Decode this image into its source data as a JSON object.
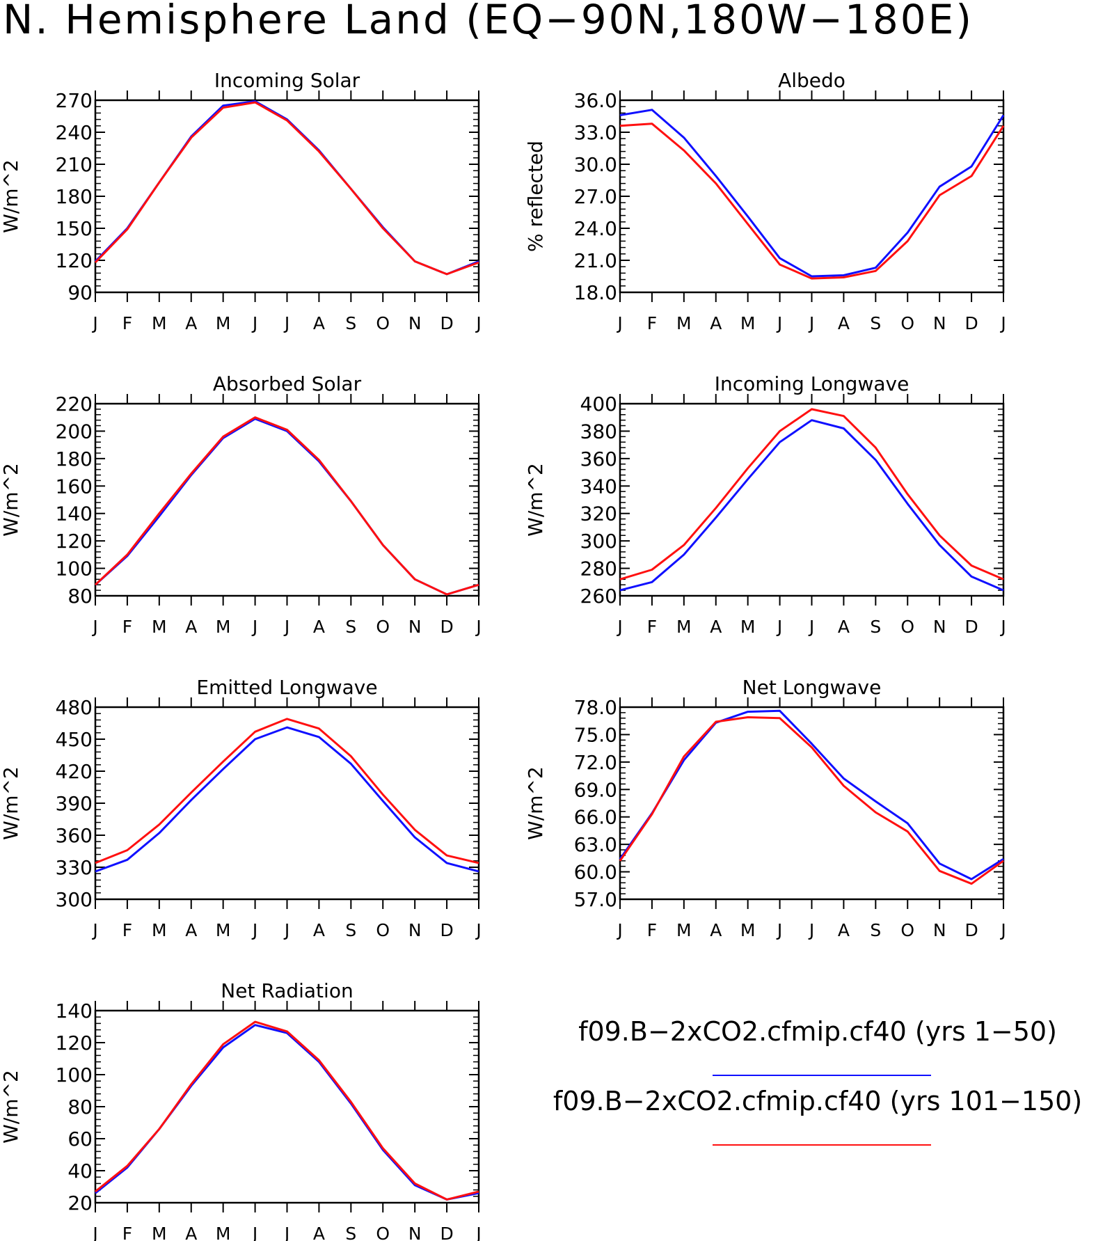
{
  "title": "N. Hemisphere Land (EQ−90N,180W−180E)",
  "colors": {
    "run1": "#1010ff",
    "run2": "#ff1010"
  },
  "legend": [
    {
      "label": "f09.B−2xCO2.cfmip.cf40 (yrs 1−50)",
      "color": "#1010ff"
    },
    {
      "label": "f09.B−2xCO2.cfmip.cf40 (yrs 101−150)",
      "color": "#ff1010"
    }
  ],
  "chart_data": [
    {
      "type": "line",
      "title": "Incoming Solar",
      "ylabel": "W/m^2",
      "ylim": [
        90,
        270
      ],
      "yticks": [
        "90",
        "120",
        "150",
        "180",
        "210",
        "240",
        "270"
      ],
      "categories": [
        "J",
        "F",
        "M",
        "A",
        "M",
        "J",
        "J",
        "A",
        "S",
        "O",
        "N",
        "D",
        "J"
      ],
      "series": [
        {
          "values": [
            118,
            149,
            193,
            235,
            263,
            268,
            251,
            222,
            187,
            150,
            119,
            107,
            118
          ]
        },
        {
          "values": [
            119,
            150,
            193,
            236,
            265,
            269,
            252,
            223,
            187,
            151,
            119,
            107,
            119
          ]
        }
      ]
    },
    {
      "type": "line",
      "title": "Albedo",
      "ylabel": "% reflected",
      "ylim": [
        18,
        36
      ],
      "yticks": [
        "18.0",
        "21.0",
        "24.0",
        "27.0",
        "30.0",
        "33.0",
        "36.0"
      ],
      "categories": [
        "J",
        "F",
        "M",
        "A",
        "M",
        "J",
        "J",
        "A",
        "S",
        "O",
        "N",
        "D",
        "J"
      ],
      "series": [
        {
          "values": [
            33.6,
            33.8,
            31.3,
            28.2,
            24.4,
            20.6,
            19.3,
            19.4,
            20.0,
            22.8,
            27.1,
            28.9,
            33.6
          ]
        },
        {
          "values": [
            34.6,
            35.1,
            32.5,
            28.9,
            25.1,
            21.2,
            19.5,
            19.6,
            20.3,
            23.6,
            27.9,
            29.8,
            34.6
          ]
        }
      ]
    },
    {
      "type": "line",
      "title": "Absorbed Solar",
      "ylabel": "W/m^2",
      "ylim": [
        80,
        220
      ],
      "yticks": [
        "80",
        "100",
        "120",
        "140",
        "160",
        "180",
        "200",
        "220"
      ],
      "categories": [
        "J",
        "F",
        "M",
        "A",
        "M",
        "J",
        "J",
        "A",
        "S",
        "O",
        "N",
        "D",
        "J"
      ],
      "series": [
        {
          "values": [
            88,
            110,
            140,
            169,
            196,
            210,
            201,
            179,
            149,
            117,
            92,
            81,
            88
          ]
        },
        {
          "values": [
            88,
            109,
            138,
            168,
            195,
            209,
            200,
            178,
            149,
            117,
            92,
            81,
            88
          ]
        }
      ]
    },
    {
      "type": "line",
      "title": "Incoming Longwave",
      "ylabel": "W/m^2",
      "ylim": [
        260,
        400
      ],
      "yticks": [
        "260",
        "280",
        "300",
        "320",
        "340",
        "360",
        "380",
        "400"
      ],
      "categories": [
        "J",
        "F",
        "M",
        "A",
        "M",
        "J",
        "J",
        "A",
        "S",
        "O",
        "N",
        "D",
        "J"
      ],
      "series": [
        {
          "values": [
            272,
            279,
            297,
            324,
            353,
            380,
            396,
            391,
            368,
            334,
            304,
            282,
            272
          ]
        },
        {
          "values": [
            264,
            270,
            290,
            317,
            345,
            372,
            388,
            382,
            359,
            327,
            297,
            274,
            264
          ]
        }
      ]
    },
    {
      "type": "line",
      "title": "Emitted Longwave",
      "ylabel": "W/m^2",
      "ylim": [
        300,
        480
      ],
      "yticks": [
        "300",
        "330",
        "360",
        "390",
        "420",
        "450",
        "480"
      ],
      "categories": [
        "J",
        "F",
        "M",
        "A",
        "M",
        "J",
        "J",
        "A",
        "S",
        "O",
        "N",
        "D",
        "J"
      ],
      "series": [
        {
          "values": [
            334,
            346,
            370,
            400,
            429,
            457,
            469,
            460,
            434,
            398,
            365,
            341,
            334
          ]
        },
        {
          "values": [
            326,
            337,
            362,
            393,
            422,
            450,
            461,
            452,
            427,
            392,
            358,
            334,
            326
          ]
        }
      ]
    },
    {
      "type": "line",
      "title": "Net Longwave",
      "ylabel": "W/m^2",
      "ylim": [
        57,
        78
      ],
      "yticks": [
        "57.0",
        "60.0",
        "63.0",
        "66.0",
        "69.0",
        "72.0",
        "75.0",
        "78.0"
      ],
      "categories": [
        "J",
        "F",
        "M",
        "A",
        "M",
        "J",
        "J",
        "A",
        "S",
        "O",
        "N",
        "D",
        "J"
      ],
      "series": [
        {
          "values": [
            61.2,
            66.3,
            72.6,
            76.4,
            76.9,
            76.8,
            73.6,
            69.4,
            66.5,
            64.4,
            60.1,
            58.7,
            61.2
          ]
        },
        {
          "values": [
            61.4,
            66.4,
            72.2,
            76.3,
            77.5,
            77.6,
            74.0,
            70.2,
            67.7,
            65.3,
            60.9,
            59.2,
            61.4
          ]
        }
      ]
    },
    {
      "type": "line",
      "title": "Net Radiation",
      "ylabel": "W/m^2",
      "ylim": [
        20,
        140
      ],
      "yticks": [
        "20",
        "40",
        "60",
        "80",
        "100",
        "120",
        "140"
      ],
      "categories": [
        "J",
        "F",
        "M",
        "A",
        "M",
        "J",
        "J",
        "A",
        "S",
        "O",
        "N",
        "D",
        "J"
      ],
      "series": [
        {
          "values": [
            27,
            43,
            66,
            94,
            119,
            133,
            127,
            109,
            83,
            54,
            32,
            22,
            27
          ]
        },
        {
          "values": [
            26,
            42,
            66,
            93,
            117,
            131,
            126,
            108,
            82,
            53,
            31,
            22,
            26
          ]
        }
      ]
    }
  ]
}
